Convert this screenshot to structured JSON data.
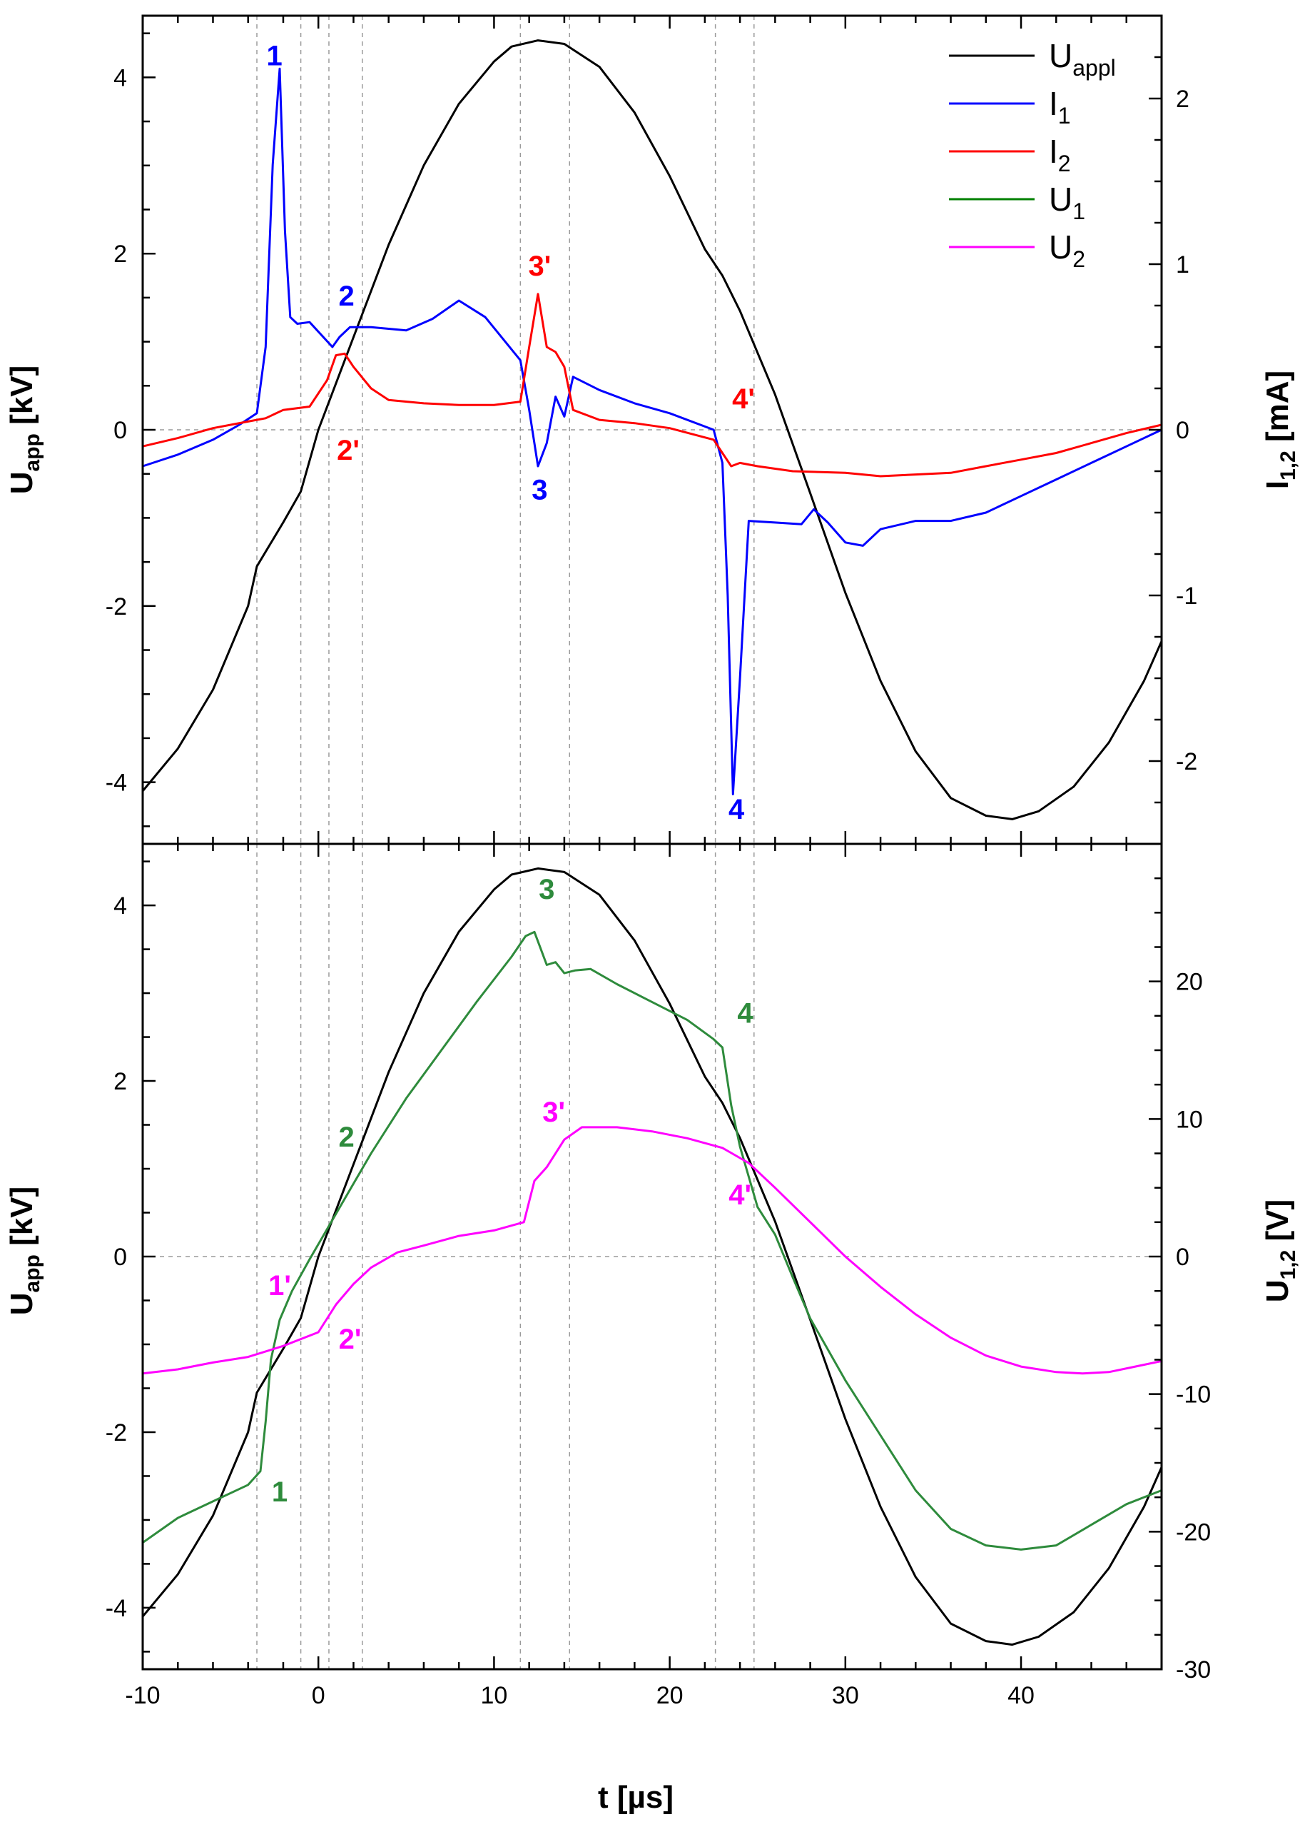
{
  "chart_data": [
    {
      "panel": "top",
      "type": "line",
      "xlabel": "",
      "xlim": [
        -10,
        48
      ],
      "ylabel_left": {
        "main": "U",
        "sub": "app",
        "rest": " [kV]"
      },
      "ylim_left": [
        -4.7,
        4.7
      ],
      "yticks_left": [
        -4,
        -2,
        0,
        2,
        4
      ],
      "ylabel_right": {
        "main": "I",
        "sub": "1,2",
        "rest": " [mA]"
      },
      "ylim_right": [
        -2.5,
        2.5
      ],
      "yticks_right": [
        -2,
        -1,
        0,
        1,
        2
      ],
      "vertical_markers_t": [
        -3.5,
        -1.0,
        0.6,
        2.5,
        11.5,
        14.3,
        22.6,
        24.8
      ],
      "legend": [
        {
          "label": "U",
          "sub": "appl",
          "color": "#000000"
        },
        {
          "label": "I",
          "sub": "1",
          "color": "#0000ff"
        },
        {
          "label": "I",
          "sub": "2",
          "color": "#ff0000"
        },
        {
          "label": "U",
          "sub": "1",
          "color": "#008000"
        },
        {
          "label": "U",
          "sub": "2",
          "color": "#ff00ff"
        }
      ],
      "series": [
        {
          "name": "U_appl",
          "axis": "left",
          "color": "#000000",
          "x": [
            -10,
            -8,
            -6,
            -4,
            -3.5,
            -2,
            -1,
            0,
            2,
            4,
            6,
            8,
            10,
            11,
            12.5,
            14,
            16,
            18,
            20,
            22,
            23,
            24,
            26,
            28,
            30,
            32,
            34,
            36,
            38,
            39.5,
            41,
            43,
            45,
            47,
            48
          ],
          "y": [
            -4.1,
            -3.62,
            -2.95,
            -2.0,
            -1.55,
            -1.05,
            -0.7,
            0.0,
            1.05,
            2.1,
            3.0,
            3.7,
            4.18,
            4.35,
            4.42,
            4.38,
            4.12,
            3.6,
            2.88,
            2.05,
            1.75,
            1.35,
            0.4,
            -0.72,
            -1.85,
            -2.85,
            -3.65,
            -4.18,
            -4.38,
            -4.42,
            -4.33,
            -4.05,
            -3.55,
            -2.85,
            -2.4
          ]
        },
        {
          "name": "I_1",
          "axis": "right",
          "color": "#0000ff",
          "x": [
            -10,
            -8,
            -6,
            -4.5,
            -3.5,
            -3.0,
            -2.6,
            -2.2,
            -1.9,
            -1.6,
            -1.2,
            -0.5,
            0.8,
            1.2,
            1.8,
            3.0,
            5.0,
            6.5,
            8.0,
            9.5,
            11.5,
            12.0,
            12.5,
            13.0,
            13.5,
            14.0,
            14.5,
            16,
            18,
            20,
            22.5,
            23.0,
            23.3,
            23.6,
            24.0,
            24.5,
            26,
            27.5,
            28.2,
            29,
            30,
            31,
            32,
            34,
            36,
            38,
            40,
            42,
            44,
            46,
            48
          ],
          "y": [
            -0.22,
            -0.15,
            -0.06,
            0.03,
            0.1,
            0.5,
            1.6,
            2.18,
            1.2,
            0.68,
            0.64,
            0.65,
            0.5,
            0.56,
            0.62,
            0.62,
            0.6,
            0.67,
            0.78,
            0.68,
            0.42,
            0.12,
            -0.22,
            -0.08,
            0.2,
            0.08,
            0.32,
            0.24,
            0.16,
            0.1,
            0.0,
            -0.2,
            -1.0,
            -2.2,
            -1.5,
            -0.55,
            -0.56,
            -0.57,
            -0.48,
            -0.56,
            -0.68,
            -0.7,
            -0.6,
            -0.55,
            -0.55,
            -0.5,
            -0.4,
            -0.3,
            -0.2,
            -0.1,
            0.0
          ]
        },
        {
          "name": "I_2",
          "axis": "right",
          "color": "#ff0000",
          "x": [
            -10,
            -8,
            -6,
            -4,
            -3,
            -2,
            -0.5,
            0.5,
            1.0,
            1.5,
            2.0,
            3.0,
            4.0,
            6,
            8,
            10,
            11.5,
            12.0,
            12.5,
            13.0,
            13.5,
            14.0,
            14.5,
            16,
            18,
            20,
            22.5,
            23.0,
            23.5,
            24.0,
            25,
            27,
            30,
            32,
            34,
            36,
            38,
            40,
            42,
            44,
            46,
            48
          ],
          "y": [
            -0.1,
            -0.05,
            0.01,
            0.05,
            0.07,
            0.12,
            0.14,
            0.3,
            0.45,
            0.46,
            0.38,
            0.25,
            0.18,
            0.16,
            0.15,
            0.15,
            0.17,
            0.5,
            0.82,
            0.5,
            0.47,
            0.38,
            0.12,
            0.06,
            0.04,
            0.01,
            -0.06,
            -0.14,
            -0.22,
            -0.2,
            -0.22,
            -0.25,
            -0.26,
            -0.28,
            -0.27,
            -0.26,
            -0.22,
            -0.18,
            -0.14,
            -0.08,
            -0.02,
            0.03
          ]
        }
      ],
      "annotations": [
        {
          "text": "1",
          "x": -2.5,
          "y": 2.2,
          "axis": "right",
          "color": "#0000ff"
        },
        {
          "text": "2",
          "x": 1.6,
          "y": 0.75,
          "axis": "right",
          "color": "#0000ff"
        },
        {
          "text": "3",
          "x": 12.6,
          "y": -0.42,
          "axis": "right",
          "color": "#0000ff"
        },
        {
          "text": "4",
          "x": 23.8,
          "y": -2.35,
          "axis": "right",
          "color": "#0000ff"
        },
        {
          "text": "2'",
          "x": 1.7,
          "y": -0.18,
          "axis": "right",
          "color": "#ff0000"
        },
        {
          "text": "3'",
          "x": 12.6,
          "y": 0.93,
          "axis": "right",
          "color": "#ff0000"
        },
        {
          "text": "4'",
          "x": 24.2,
          "y": 0.13,
          "axis": "right",
          "color": "#ff0000"
        }
      ]
    },
    {
      "panel": "bottom",
      "type": "line",
      "xlabel": "t [µs]",
      "xlim": [
        -10,
        48
      ],
      "xticks": [
        -10,
        0,
        10,
        20,
        30,
        40
      ],
      "ylabel_left": {
        "main": "U",
        "sub": "app",
        "rest": " [kV]"
      },
      "ylim_left": [
        -4.7,
        4.7
      ],
      "yticks_left": [
        -4,
        -2,
        0,
        2,
        4
      ],
      "ylabel_right": {
        "main": "U",
        "sub": "1,2",
        "rest": " [V]"
      },
      "ylim_right": [
        -30,
        30
      ],
      "yticks_right": [
        -30,
        -20,
        -10,
        0,
        10,
        20
      ],
      "vertical_markers_t": [
        -3.5,
        -1.0,
        0.6,
        2.5,
        11.5,
        14.3,
        22.6,
        24.8
      ],
      "series": [
        {
          "name": "U_appl",
          "axis": "left",
          "color": "#000000",
          "x": [
            -10,
            -8,
            -6,
            -4,
            -3.5,
            -2,
            -1,
            0,
            2,
            4,
            6,
            8,
            10,
            11,
            12.5,
            14,
            16,
            18,
            20,
            22,
            23,
            24,
            26,
            28,
            30,
            32,
            34,
            36,
            38,
            39.5,
            41,
            43,
            45,
            47,
            48
          ],
          "y": [
            -4.1,
            -3.62,
            -2.95,
            -2.0,
            -1.55,
            -1.05,
            -0.7,
            0.0,
            1.05,
            2.1,
            3.0,
            3.7,
            4.18,
            4.35,
            4.42,
            4.38,
            4.12,
            3.6,
            2.88,
            2.05,
            1.75,
            1.35,
            0.4,
            -0.72,
            -1.85,
            -2.85,
            -3.65,
            -4.18,
            -4.38,
            -4.42,
            -4.33,
            -4.05,
            -3.55,
            -2.85,
            -2.4
          ]
        },
        {
          "name": "U_1",
          "axis": "right",
          "color": "#2e8b3c",
          "x": [
            -10,
            -8,
            -6,
            -4,
            -3.3,
            -3.0,
            -2.7,
            -2.2,
            -1.5,
            -0.5,
            0.5,
            1.5,
            3,
            5,
            7,
            9,
            11,
            11.8,
            12.3,
            13.0,
            13.5,
            14.0,
            14.6,
            15.5,
            17,
            19,
            21,
            22.5,
            23.0,
            23.5,
            24.0,
            25,
            26,
            27,
            28,
            30,
            32,
            34,
            36,
            38,
            40,
            42,
            44,
            46,
            48
          ],
          "y": [
            -20.8,
            -19.0,
            -17.8,
            -16.6,
            -15.6,
            -12.0,
            -7.5,
            -4.6,
            -2.5,
            -0.2,
            2.0,
            4.2,
            7.5,
            11.5,
            15.0,
            18.5,
            21.8,
            23.3,
            23.6,
            21.2,
            21.4,
            20.6,
            20.8,
            20.9,
            19.8,
            18.5,
            17.2,
            15.8,
            15.2,
            11.0,
            8.0,
            3.6,
            1.6,
            -1.5,
            -4.5,
            -9.0,
            -13.0,
            -17.0,
            -19.8,
            -21.0,
            -21.3,
            -21.0,
            -19.5,
            -18.0,
            -17.0
          ]
        },
        {
          "name": "U_2",
          "axis": "right",
          "color": "#ff00ff",
          "x": [
            -10,
            -8,
            -6,
            -4,
            -2,
            0,
            1.0,
            2.0,
            3.0,
            4.5,
            6,
            8,
            10,
            11.7,
            12.3,
            13.0,
            14.0,
            15,
            17,
            19,
            21,
            23,
            24.5,
            26,
            28,
            30,
            32,
            34,
            36,
            38,
            40,
            42,
            43.5,
            45,
            46.5,
            48
          ],
          "y": [
            -8.5,
            -8.2,
            -7.7,
            -7.3,
            -6.5,
            -5.5,
            -3.5,
            -2.0,
            -0.8,
            0.3,
            0.8,
            1.5,
            1.9,
            2.5,
            5.5,
            6.5,
            8.5,
            9.4,
            9.4,
            9.1,
            8.6,
            7.9,
            6.8,
            5.0,
            2.5,
            0.0,
            -2.2,
            -4.2,
            -5.9,
            -7.2,
            -8.0,
            -8.4,
            -8.5,
            -8.4,
            -8.0,
            -7.6
          ]
        }
      ],
      "annotations": [
        {
          "text": "1",
          "x": -2.2,
          "y": -17.8,
          "axis": "right",
          "color": "#2e8b3c"
        },
        {
          "text": "2",
          "x": 1.6,
          "y": 8.0,
          "axis": "right",
          "color": "#2e8b3c"
        },
        {
          "text": "3",
          "x": 13.0,
          "y": 26.0,
          "axis": "right",
          "color": "#2e8b3c"
        },
        {
          "text": "4",
          "x": 24.3,
          "y": 17.0,
          "axis": "right",
          "color": "#2e8b3c"
        },
        {
          "text": "1'",
          "x": -2.2,
          "y": -2.8,
          "axis": "right",
          "color": "#ff00ff"
        },
        {
          "text": "2'",
          "x": 1.8,
          "y": -6.7,
          "axis": "right",
          "color": "#ff00ff"
        },
        {
          "text": "3'",
          "x": 13.4,
          "y": 9.8,
          "axis": "right",
          "color": "#ff00ff"
        },
        {
          "text": "4'",
          "x": 24.0,
          "y": 3.8,
          "axis": "right",
          "color": "#ff00ff"
        }
      ]
    }
  ]
}
